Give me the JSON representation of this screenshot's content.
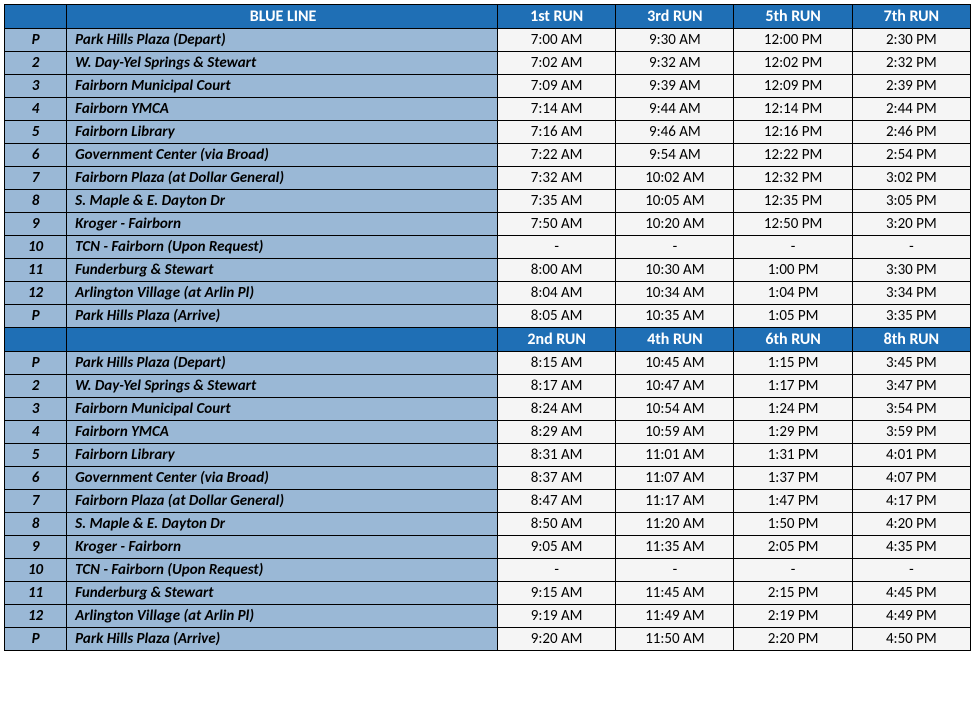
{
  "colors": {
    "header_bg": "#1f6fb5",
    "header_fg": "#ffffff",
    "stop_bg": "#9ab8d6",
    "time_bg": "#f5f5f5",
    "border": "#000000"
  },
  "sections": [
    {
      "header": {
        "num": "",
        "title": "BLUE LINE",
        "runs": [
          "1st RUN",
          "3rd RUN",
          "5th RUN",
          "7th RUN"
        ]
      },
      "rows": [
        {
          "num": "P",
          "stop": "Park Hills Plaza (Depart)",
          "t": [
            "7:00 AM",
            "9:30 AM",
            "12:00 PM",
            "2:30 PM"
          ]
        },
        {
          "num": "2",
          "stop": "W. Day-Yel Springs & Stewart",
          "t": [
            "7:02 AM",
            "9:32 AM",
            "12:02 PM",
            "2:32 PM"
          ]
        },
        {
          "num": "3",
          "stop": "Fairborn Municipal Court",
          "t": [
            "7:09 AM",
            "9:39 AM",
            "12:09 PM",
            "2:39 PM"
          ]
        },
        {
          "num": "4",
          "stop": "Fairborn YMCA",
          "t": [
            "7:14 AM",
            "9:44 AM",
            "12:14 PM",
            "2:44 PM"
          ]
        },
        {
          "num": "5",
          "stop": "Fairborn Library",
          "t": [
            "7:16 AM",
            "9:46 AM",
            "12:16 PM",
            "2:46 PM"
          ]
        },
        {
          "num": "6",
          "stop": "Government Center (via Broad)",
          "t": [
            "7:22 AM",
            "9:54 AM",
            "12:22 PM",
            "2:54 PM"
          ]
        },
        {
          "num": "7",
          "stop": "Fairborn Plaza (at Dollar General)",
          "t": [
            "7:32 AM",
            "10:02 AM",
            "12:32 PM",
            "3:02 PM"
          ]
        },
        {
          "num": "8",
          "stop": "S. Maple & E. Dayton Dr",
          "t": [
            "7:35 AM",
            "10:05 AM",
            "12:35 PM",
            "3:05 PM"
          ]
        },
        {
          "num": "9",
          "stop": "Kroger - Fairborn",
          "t": [
            "7:50 AM",
            "10:20 AM",
            "12:50 PM",
            "3:20 PM"
          ]
        },
        {
          "num": "10",
          "stop": "TCN - Fairborn (Upon Request)",
          "t": [
            "-",
            "-",
            "-",
            "-"
          ]
        },
        {
          "num": "11",
          "stop": "Funderburg & Stewart",
          "t": [
            "8:00 AM",
            "10:30 AM",
            "1:00 PM",
            "3:30 PM"
          ]
        },
        {
          "num": "12",
          "stop": "Arlington Village (at Arlin Pl)",
          "t": [
            "8:04 AM",
            "10:34 AM",
            "1:04 PM",
            "3:34 PM"
          ]
        },
        {
          "num": "P",
          "stop": "Park Hills Plaza (Arrive)",
          "t": [
            "8:05 AM",
            "10:35 AM",
            "1:05 PM",
            "3:35 PM"
          ]
        }
      ]
    },
    {
      "header": {
        "num": "",
        "title": "",
        "runs": [
          "2nd RUN",
          "4th RUN",
          "6th RUN",
          "8th RUN"
        ]
      },
      "rows": [
        {
          "num": "P",
          "stop": "Park Hills Plaza (Depart)",
          "t": [
            "8:15 AM",
            "10:45 AM",
            "1:15 PM",
            "3:45 PM"
          ]
        },
        {
          "num": "2",
          "stop": "W. Day-Yel Springs & Stewart",
          "t": [
            "8:17 AM",
            "10:47 AM",
            "1:17 PM",
            "3:47 PM"
          ]
        },
        {
          "num": "3",
          "stop": "Fairborn Municipal Court",
          "t": [
            "8:24 AM",
            "10:54 AM",
            "1:24 PM",
            "3:54 PM"
          ]
        },
        {
          "num": "4",
          "stop": "Fairborn YMCA",
          "t": [
            "8:29 AM",
            "10:59 AM",
            "1:29 PM",
            "3:59 PM"
          ]
        },
        {
          "num": "5",
          "stop": "Fairborn Library",
          "t": [
            "8:31 AM",
            "11:01 AM",
            "1:31 PM",
            "4:01 PM"
          ]
        },
        {
          "num": "6",
          "stop": "Government Center (via Broad)",
          "t": [
            "8:37 AM",
            "11:07 AM",
            "1:37 PM",
            "4:07 PM"
          ]
        },
        {
          "num": "7",
          "stop": "Fairborn Plaza (at Dollar General)",
          "t": [
            "8:47 AM",
            "11:17 AM",
            "1:47 PM",
            "4:17 PM"
          ]
        },
        {
          "num": "8",
          "stop": "S. Maple & E. Dayton Dr",
          "t": [
            "8:50 AM",
            "11:20 AM",
            "1:50 PM",
            "4:20 PM"
          ]
        },
        {
          "num": "9",
          "stop": "Kroger - Fairborn",
          "t": [
            "9:05 AM",
            "11:35 AM",
            "2:05 PM",
            "4:35 PM"
          ]
        },
        {
          "num": "10",
          "stop": "TCN - Fairborn (Upon Request)",
          "t": [
            "-",
            "-",
            "-",
            "-"
          ]
        },
        {
          "num": "11",
          "stop": "Funderburg & Stewart",
          "t": [
            "9:15 AM",
            "11:45 AM",
            "2:15 PM",
            "4:45 PM"
          ]
        },
        {
          "num": "12",
          "stop": "Arlington Village (at Arlin Pl)",
          "t": [
            "9:19 AM",
            "11:49 AM",
            "2:19 PM",
            "4:49 PM"
          ]
        },
        {
          "num": "P",
          "stop": "Park Hills Plaza (Arrive)",
          "t": [
            "9:20 AM",
            "11:50 AM",
            "2:20 PM",
            "4:50 PM"
          ]
        }
      ]
    }
  ]
}
